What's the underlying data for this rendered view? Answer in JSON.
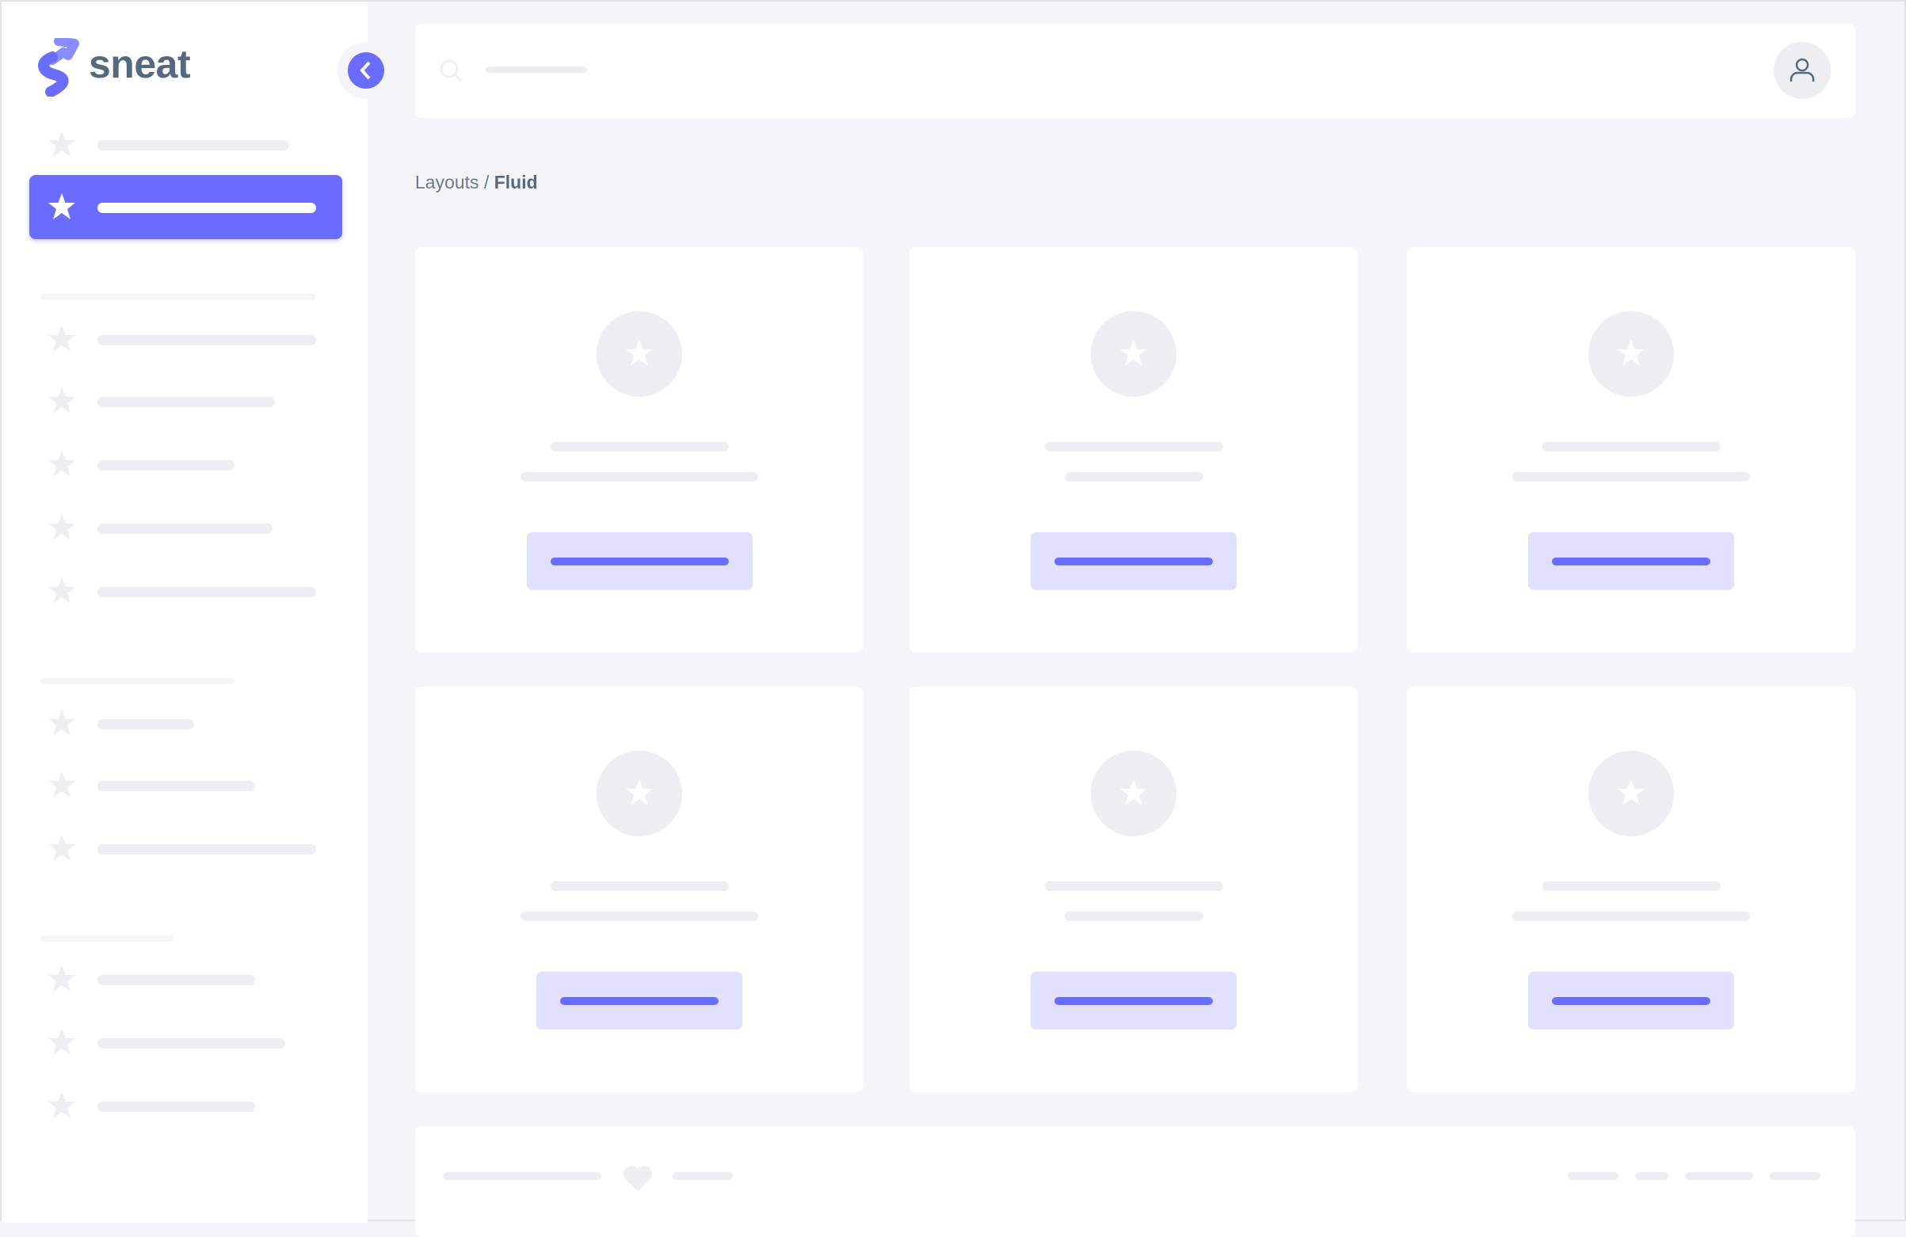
{
  "brand": {
    "name": "sneat",
    "accent": "#696cff",
    "text_color": "#566a7f"
  },
  "breadcrumb": {
    "parent": "Layouts",
    "separator": " / ",
    "current": "Fluid"
  },
  "icons": {
    "menu": "star-icon",
    "toggle": "chevron-left-icon",
    "search": "search-icon",
    "user": "user-icon",
    "footer": "heart-icon"
  },
  "sidebar": {
    "active_index": 1,
    "sections": [
      {
        "items": 2
      },
      {
        "items": 5
      },
      {
        "items": 3
      },
      {
        "items": 3
      }
    ]
  },
  "cards": {
    "count": 6
  }
}
